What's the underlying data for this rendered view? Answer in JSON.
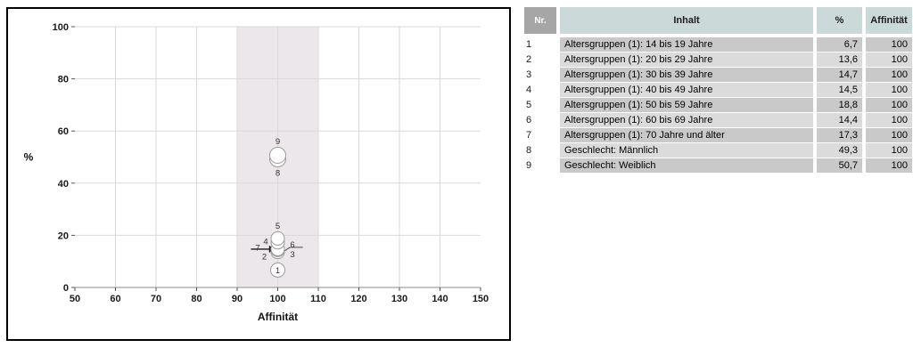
{
  "chart_data": {
    "type": "scatter",
    "title": "",
    "xlabel": "Affinität",
    "ylabel": "%",
    "xlim": [
      50,
      150
    ],
    "ylim": [
      0,
      100
    ],
    "x_ticks": [
      50,
      60,
      70,
      80,
      90,
      100,
      110,
      120,
      130,
      140,
      150
    ],
    "y_ticks": [
      0,
      20,
      40,
      60,
      80,
      100
    ],
    "grid": true,
    "band": {
      "x_from": 90,
      "x_to": 110
    },
    "points": [
      {
        "nr": "1",
        "x": 100,
        "y": 6.7,
        "r": 8,
        "label_pos": "inside"
      },
      {
        "nr": "2",
        "x": 100,
        "y": 13.6,
        "r": 7.5,
        "label_pos": "left-below"
      },
      {
        "nr": "3",
        "x": 100,
        "y": 14.7,
        "r": 7.5,
        "label_pos": "right-below"
      },
      {
        "nr": "4",
        "x": 100,
        "y": 14.5,
        "r": 7.5,
        "label_pos": "left-above"
      },
      {
        "nr": "5",
        "x": 100,
        "y": 18.8,
        "r": 7.5,
        "label_pos": "above"
      },
      {
        "nr": "6",
        "x": 100,
        "y": 14.4,
        "r": 7.5,
        "label_pos": "right-above"
      },
      {
        "nr": "7",
        "x": 100,
        "y": 17.3,
        "r": 7.5,
        "label_pos": "far-left"
      },
      {
        "nr": "8",
        "x": 100,
        "y": 49.3,
        "r": 9,
        "label_pos": "below"
      },
      {
        "nr": "9",
        "x": 100,
        "y": 50.7,
        "r": 9,
        "label_pos": "above"
      }
    ],
    "leaders": [
      {
        "type": "arrow",
        "x1": 93.4,
        "x2": 99.4,
        "y": 14.7
      },
      {
        "type": "line",
        "x1": 101.0,
        "x2": 106.2,
        "y1": 13.8,
        "y2": 15.4
      }
    ]
  },
  "table": {
    "columns": [
      "Nr.",
      "Inhalt",
      "%",
      "Affinität"
    ],
    "rows": [
      {
        "nr": "1",
        "inhalt": "Altersgruppen (1): 14 bis 19 Jahre",
        "pct": "6,7",
        "affinitaet": "100"
      },
      {
        "nr": "2",
        "inhalt": "Altersgruppen (1): 20 bis 29 Jahre",
        "pct": "13,6",
        "affinitaet": "100"
      },
      {
        "nr": "3",
        "inhalt": "Altersgruppen (1): 30 bis 39 Jahre",
        "pct": "14,7",
        "affinitaet": "100"
      },
      {
        "nr": "4",
        "inhalt": "Altersgruppen (1): 40 bis 49 Jahre",
        "pct": "14,5",
        "affinitaet": "100"
      },
      {
        "nr": "5",
        "inhalt": "Altersgruppen (1): 50 bis 59 Jahre",
        "pct": "18,8",
        "affinitaet": "100"
      },
      {
        "nr": "6",
        "inhalt": "Altersgruppen (1): 60 bis 69 Jahre",
        "pct": "14,4",
        "affinitaet": "100"
      },
      {
        "nr": "7",
        "inhalt": "Altersgruppen (1): 70 Jahre und älter",
        "pct": "17,3",
        "affinitaet": "100"
      },
      {
        "nr": "8",
        "inhalt": "Geschlecht: Männlich",
        "pct": "49,3",
        "affinitaet": "100"
      },
      {
        "nr": "9",
        "inhalt": "Geschlecht: Weiblich",
        "pct": "50,7",
        "affinitaet": "100"
      }
    ]
  },
  "colors": {
    "band": "#ece7eb",
    "grid": "#d9d9d9",
    "axis": "#8c8c8c",
    "tick_text": "#1a1a1a",
    "point_fill": "#ffffff",
    "point_stroke": "#9b9b9b",
    "point_label": "#333333",
    "leader": "#1a1a1a",
    "header_bg": "#ccd9d9",
    "nr_header_bg": "#a6a6a6",
    "row_odd": "#c9c9c9",
    "row_even": "#dbdbdb"
  }
}
